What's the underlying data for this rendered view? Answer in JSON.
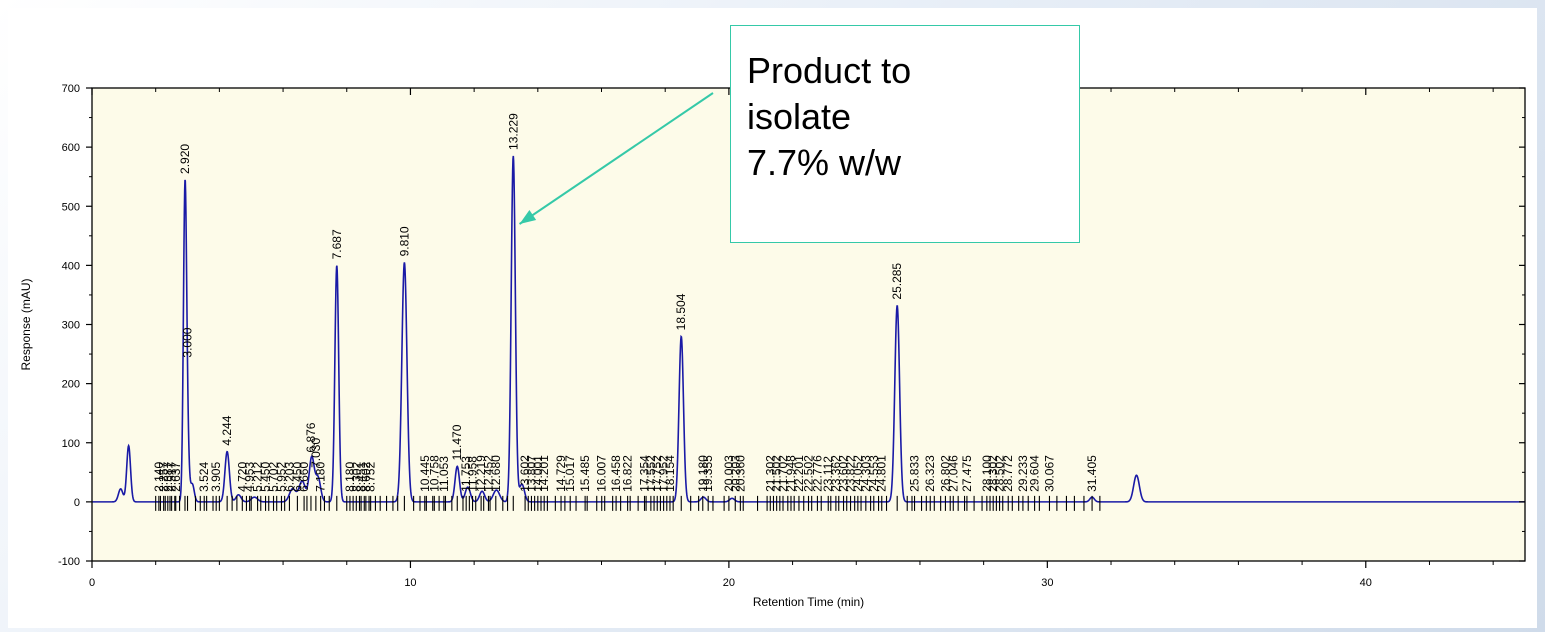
{
  "chart_data": {
    "type": "line",
    "xlabel": "Retention Time (min)",
    "ylabel": "Response (mAU)",
    "xlim": [
      0,
      45
    ],
    "ylim": [
      -100,
      700
    ],
    "x_ticks": [
      0,
      10,
      20,
      30,
      40
    ],
    "y_ticks": [
      -100,
      0,
      100,
      200,
      300,
      400,
      500,
      600,
      700
    ],
    "grid": false,
    "colors": {
      "trace": "#1a1aa6",
      "plot_bg": "#fdfbe9",
      "callout_border": "#35c9a8",
      "arrow": "#35c9a8"
    },
    "peaks": [
      {
        "t": 0.9,
        "h": 22,
        "w": 0.07
      },
      {
        "t": 1.15,
        "h": 95,
        "w": 0.06
      },
      {
        "t": 2.92,
        "h": 520,
        "w": 0.05
      },
      {
        "t": 3.0,
        "h": 88,
        "w": 0.05
      },
      {
        "t": 3.15,
        "h": 30,
        "w": 0.06
      },
      {
        "t": 4.244,
        "h": 85,
        "w": 0.07
      },
      {
        "t": 4.6,
        "h": 12,
        "w": 0.08
      },
      {
        "t": 5.1,
        "h": 8,
        "w": 0.1
      },
      {
        "t": 6.3,
        "h": 22,
        "w": 0.1
      },
      {
        "t": 6.6,
        "h": 35,
        "w": 0.1
      },
      {
        "t": 6.9,
        "h": 75,
        "w": 0.08
      },
      {
        "t": 7.1,
        "h": 40,
        "w": 0.08
      },
      {
        "t": 7.687,
        "h": 400,
        "w": 0.06
      },
      {
        "t": 9.81,
        "h": 405,
        "w": 0.08
      },
      {
        "t": 11.47,
        "h": 60,
        "w": 0.07
      },
      {
        "t": 11.8,
        "h": 25,
        "w": 0.08
      },
      {
        "t": 12.25,
        "h": 18,
        "w": 0.08
      },
      {
        "t": 12.7,
        "h": 20,
        "w": 0.1
      },
      {
        "t": 13.229,
        "h": 585,
        "w": 0.065
      },
      {
        "t": 13.5,
        "h": 30,
        "w": 0.08
      },
      {
        "t": 18.504,
        "h": 280,
        "w": 0.07
      },
      {
        "t": 19.2,
        "h": 8,
        "w": 0.08
      },
      {
        "t": 20.1,
        "h": 6,
        "w": 0.08
      },
      {
        "t": 25.285,
        "h": 332,
        "w": 0.075
      },
      {
        "t": 31.405,
        "h": 8,
        "w": 0.07
      },
      {
        "t": 32.8,
        "h": 45,
        "w": 0.09
      }
    ],
    "peak_labels": [
      {
        "t": 2.1,
        "text": "2.140"
      },
      {
        "t": 2.25,
        "text": "2.257"
      },
      {
        "t": 2.38,
        "text": "2.387"
      },
      {
        "t": 2.5,
        "text": "2.517"
      },
      {
        "t": 2.63,
        "text": "2.637"
      },
      {
        "t": 2.92,
        "text": "2.920"
      },
      {
        "t": 3.0,
        "text": "3.000"
      },
      {
        "t": 3.524,
        "text": "3.524"
      },
      {
        "t": 3.9,
        "text": "3.905"
      },
      {
        "t": 4.244,
        "text": "4.244"
      },
      {
        "t": 4.72,
        "text": "4.720"
      },
      {
        "t": 4.95,
        "text": "4.953"
      },
      {
        "t": 5.2,
        "text": "5.212"
      },
      {
        "t": 5.45,
        "text": "5.450"
      },
      {
        "t": 5.7,
        "text": "5.702"
      },
      {
        "t": 5.95,
        "text": "5.952"
      },
      {
        "t": 6.2,
        "text": "6.203"
      },
      {
        "t": 6.45,
        "text": "6.450"
      },
      {
        "t": 6.66,
        "text": "6.660"
      },
      {
        "t": 6.876,
        "text": "6.876"
      },
      {
        "t": 7.03,
        "text": "7.030"
      },
      {
        "t": 7.18,
        "text": "7.180"
      },
      {
        "t": 7.687,
        "text": "7.687"
      },
      {
        "t": 8.1,
        "text": "8.180"
      },
      {
        "t": 8.3,
        "text": "8.302"
      },
      {
        "t": 8.45,
        "text": "8.451"
      },
      {
        "t": 8.6,
        "text": "8.602"
      },
      {
        "t": 8.75,
        "text": "8.752"
      },
      {
        "t": 9.81,
        "text": "9.810"
      },
      {
        "t": 10.45,
        "text": "10.445"
      },
      {
        "t": 10.75,
        "text": "10.758"
      },
      {
        "t": 11.05,
        "text": "11.053"
      },
      {
        "t": 11.47,
        "text": "11.470"
      },
      {
        "t": 11.75,
        "text": "11.753"
      },
      {
        "t": 11.95,
        "text": "11.958"
      },
      {
        "t": 12.219,
        "text": "12.219"
      },
      {
        "t": 12.45,
        "text": "12.452"
      },
      {
        "t": 12.68,
        "text": "12.680"
      },
      {
        "t": 13.229,
        "text": "13.229"
      },
      {
        "t": 13.6,
        "text": "13.602"
      },
      {
        "t": 13.8,
        "text": "13.807"
      },
      {
        "t": 14.0,
        "text": "14.001"
      },
      {
        "t": 14.2,
        "text": "14.201"
      },
      {
        "t": 14.729,
        "text": "14.729"
      },
      {
        "t": 15.017,
        "text": "15.017"
      },
      {
        "t": 15.485,
        "text": "15.485"
      },
      {
        "t": 16.007,
        "text": "16.007"
      },
      {
        "t": 16.458,
        "text": "16.458"
      },
      {
        "t": 16.82,
        "text": "16.822"
      },
      {
        "t": 17.35,
        "text": "17.354"
      },
      {
        "t": 17.55,
        "text": "17.552"
      },
      {
        "t": 17.75,
        "text": "17.752"
      },
      {
        "t": 17.95,
        "text": "17.952"
      },
      {
        "t": 18.15,
        "text": "18.154"
      },
      {
        "t": 18.504,
        "text": "18.504"
      },
      {
        "t": 19.18,
        "text": "19.180"
      },
      {
        "t": 19.35,
        "text": "19.355"
      },
      {
        "t": 20.0,
        "text": "20.003"
      },
      {
        "t": 20.2,
        "text": "20.203"
      },
      {
        "t": 20.36,
        "text": "20.360"
      },
      {
        "t": 21.3,
        "text": "21.302"
      },
      {
        "t": 21.5,
        "text": "21.502"
      },
      {
        "t": 21.7,
        "text": "21.702"
      },
      {
        "t": 21.95,
        "text": "21.948"
      },
      {
        "t": 22.2,
        "text": "22.201"
      },
      {
        "t": 22.5,
        "text": "22.502"
      },
      {
        "t": 22.78,
        "text": "22.776"
      },
      {
        "t": 23.12,
        "text": "23.112"
      },
      {
        "t": 23.36,
        "text": "23.362"
      },
      {
        "t": 23.6,
        "text": "23.602"
      },
      {
        "t": 23.82,
        "text": "23.822"
      },
      {
        "t": 24.05,
        "text": "24.052"
      },
      {
        "t": 24.3,
        "text": "24.303"
      },
      {
        "t": 24.55,
        "text": "24.553"
      },
      {
        "t": 24.8,
        "text": "24.801"
      },
      {
        "t": 25.285,
        "text": "25.285"
      },
      {
        "t": 25.83,
        "text": "25.833"
      },
      {
        "t": 26.323,
        "text": "26.323"
      },
      {
        "t": 26.8,
        "text": "26.802"
      },
      {
        "t": 27.046,
        "text": "27.046"
      },
      {
        "t": 27.475,
        "text": "27.475"
      },
      {
        "t": 28.1,
        "text": "28.100"
      },
      {
        "t": 28.3,
        "text": "28.302"
      },
      {
        "t": 28.5,
        "text": "28.502"
      },
      {
        "t": 28.772,
        "text": "28.772"
      },
      {
        "t": 29.233,
        "text": "29.233"
      },
      {
        "t": 29.6,
        "text": "29.604"
      },
      {
        "t": 30.067,
        "text": "30.067"
      },
      {
        "t": 31.405,
        "text": "31.405"
      }
    ],
    "integration_marks": [
      2.0,
      2.15,
      2.3,
      2.45,
      2.6,
      2.75,
      3.25,
      3.4,
      3.6,
      3.8,
      4.0,
      4.4,
      4.55,
      4.85,
      5.0,
      5.3,
      5.55,
      5.8,
      6.05,
      6.75,
      7.3,
      7.45,
      8.0,
      8.2,
      8.4,
      8.55,
      8.7,
      8.9,
      9.05,
      9.25,
      9.45,
      9.6,
      10.1,
      10.3,
      10.5,
      10.7,
      10.9,
      11.1,
      11.3,
      11.65,
      11.85,
      12.05,
      12.3,
      12.5,
      12.9,
      13.05,
      13.7,
      13.9,
      14.1,
      14.3,
      14.55,
      14.85,
      15.2,
      15.55,
      15.85,
      16.1,
      16.35,
      16.6,
      16.9,
      17.15,
      17.4,
      17.65,
      17.85,
      18.05,
      18.25,
      18.8,
      19.05,
      19.5,
      19.85,
      20.45,
      20.9,
      21.2,
      21.4,
      21.6,
      21.85,
      22.05,
      22.35,
      22.6,
      22.9,
      23.2,
      23.45,
      23.7,
      23.95,
      24.15,
      24.45,
      24.7,
      24.95,
      25.6,
      25.75,
      26.05,
      26.2,
      26.45,
      26.65,
      26.95,
      27.2,
      27.4,
      27.7,
      27.95,
      28.2,
      28.4,
      28.6,
      28.9,
      29.1,
      29.4,
      29.75,
      30.3,
      30.6,
      30.85,
      31.15,
      31.65
    ],
    "annotation": {
      "lines": [
        "Product to",
        "isolate",
        "7.7% w/w"
      ],
      "target_t": 13.3,
      "target_y": 470
    }
  }
}
